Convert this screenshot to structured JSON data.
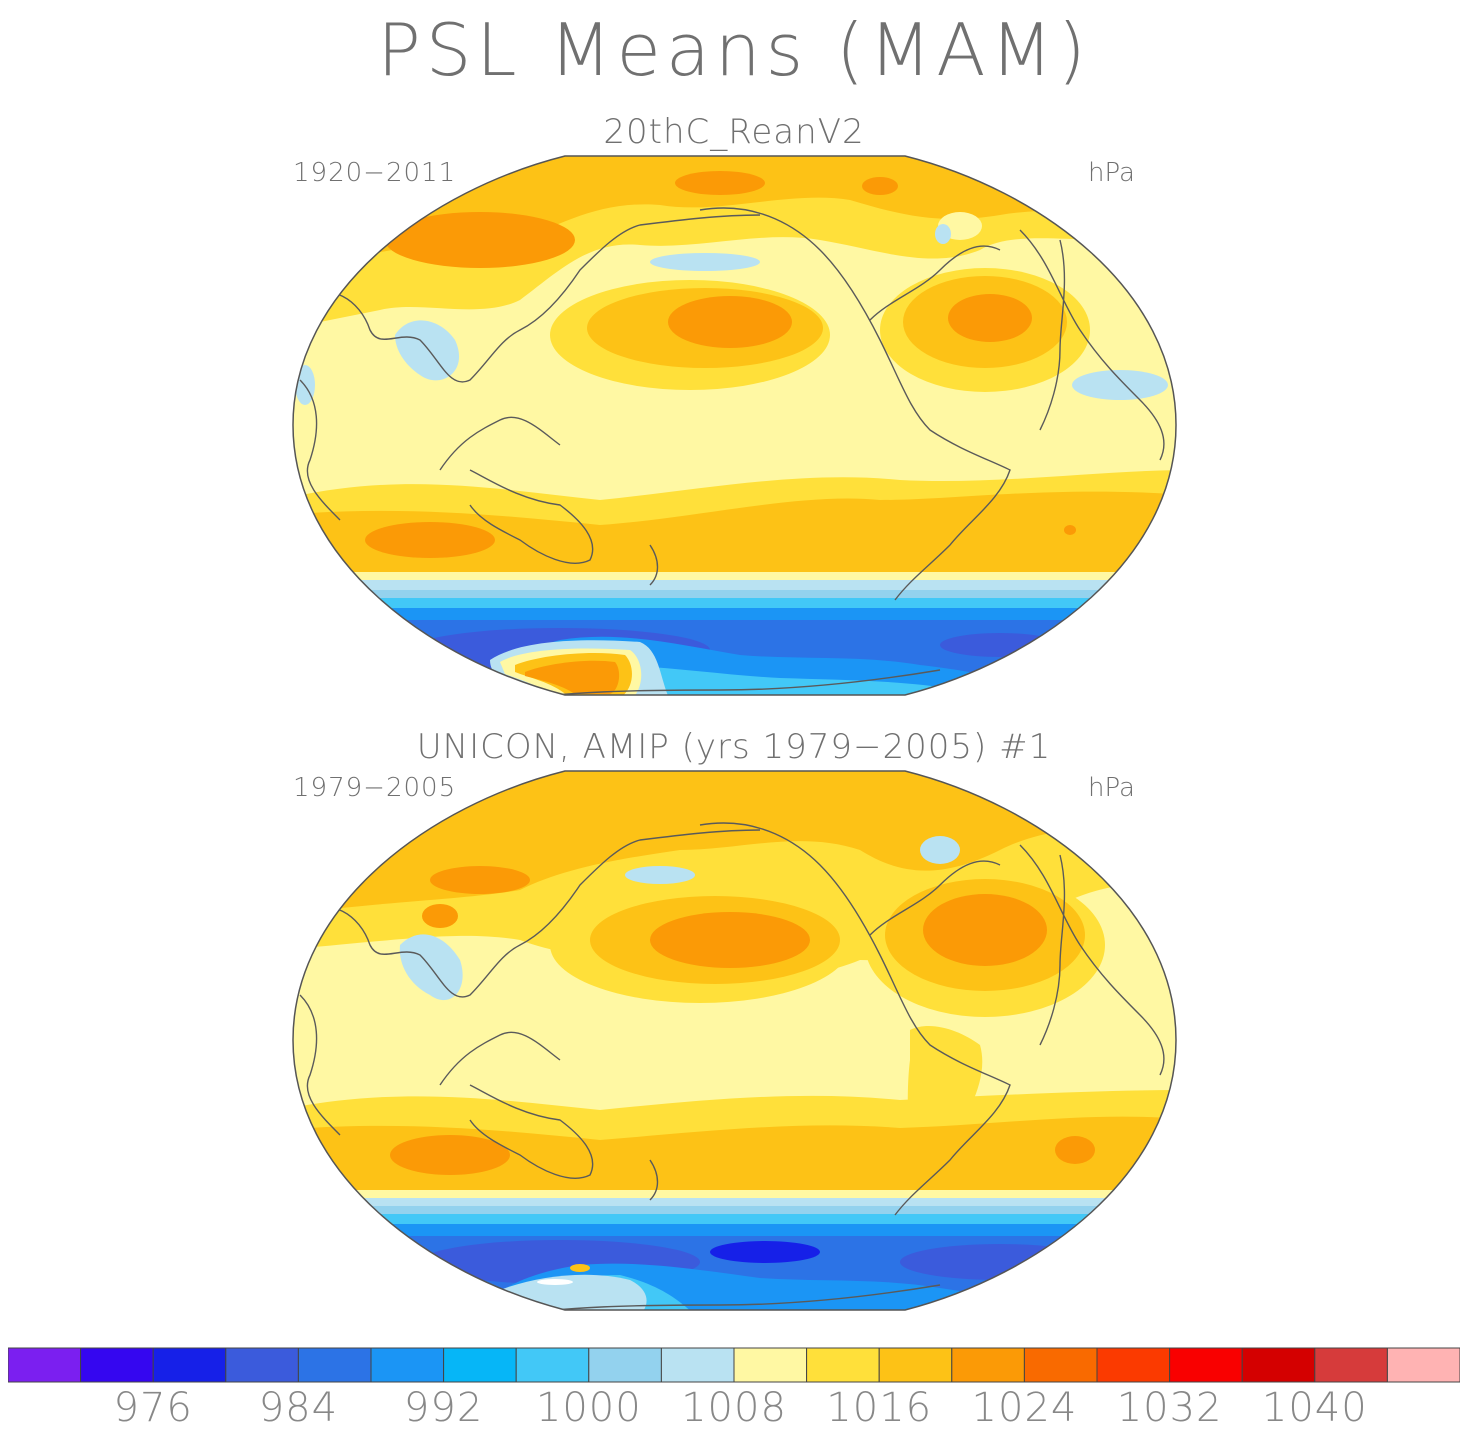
{
  "title": "PSL Means (MAM)",
  "panels": [
    {
      "title": "20thC_ReanV2",
      "years": "1920−2011",
      "units": "hPa"
    },
    {
      "title": "UNICON, AMIP (yrs 1979−2005)      #1",
      "years": "1979−2005",
      "units": "hPa"
    }
  ],
  "colorbar": {
    "colors": [
      "#7b1ff0",
      "#3506f0",
      "#1620e8",
      "#3b5bdc",
      "#2c73e6",
      "#1b95f5",
      "#06b6f7",
      "#42c8f7",
      "#93d2ee",
      "#b9e2f2",
      "#fff8a3",
      "#ffe03a",
      "#fdc216",
      "#fb9a06",
      "#f96a00",
      "#fb3a00",
      "#f90000",
      "#d40000",
      "#d63b3b",
      "#ffb3b3"
    ],
    "labels": [
      "976",
      "984",
      "992",
      "1000",
      "1008",
      "1016",
      "1024",
      "1032",
      "1040"
    ]
  }
}
